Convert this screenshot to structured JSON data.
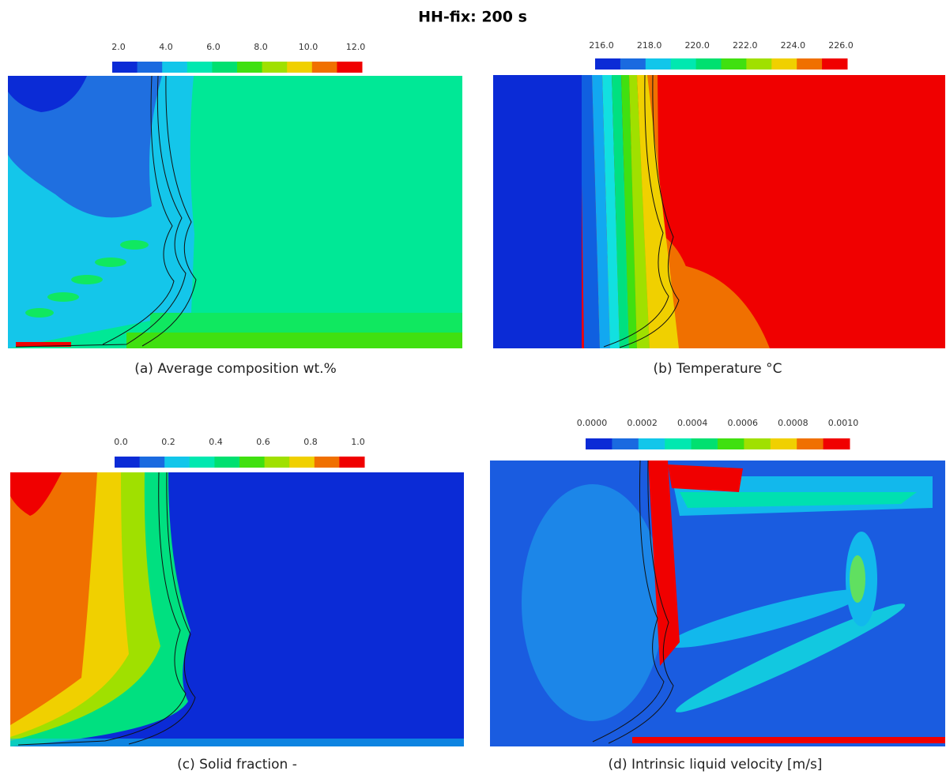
{
  "title": "HH-fix: 200 s",
  "panels": [
    {
      "caption": "(a) Average composition wt.%",
      "colorbar_labels": [
        "2.0",
        "4.0",
        "6.0",
        "8.0",
        "10.0",
        "12.0"
      ]
    },
    {
      "caption": "(b) Temperature °C",
      "colorbar_labels": [
        "216.0",
        "218.0",
        "220.0",
        "222.0",
        "224.0",
        "226.0"
      ]
    },
    {
      "caption": "(c) Solid fraction -",
      "colorbar_labels": [
        "0.0",
        "0.2",
        "0.4",
        "0.6",
        "0.8",
        "1.0"
      ]
    },
    {
      "caption": "(d) Intrinsic liquid velocity [m/s]",
      "colorbar_labels": [
        "0.0000",
        "0.0002",
        "0.0004",
        "0.0006",
        "0.0008",
        "0.0010"
      ]
    }
  ]
}
